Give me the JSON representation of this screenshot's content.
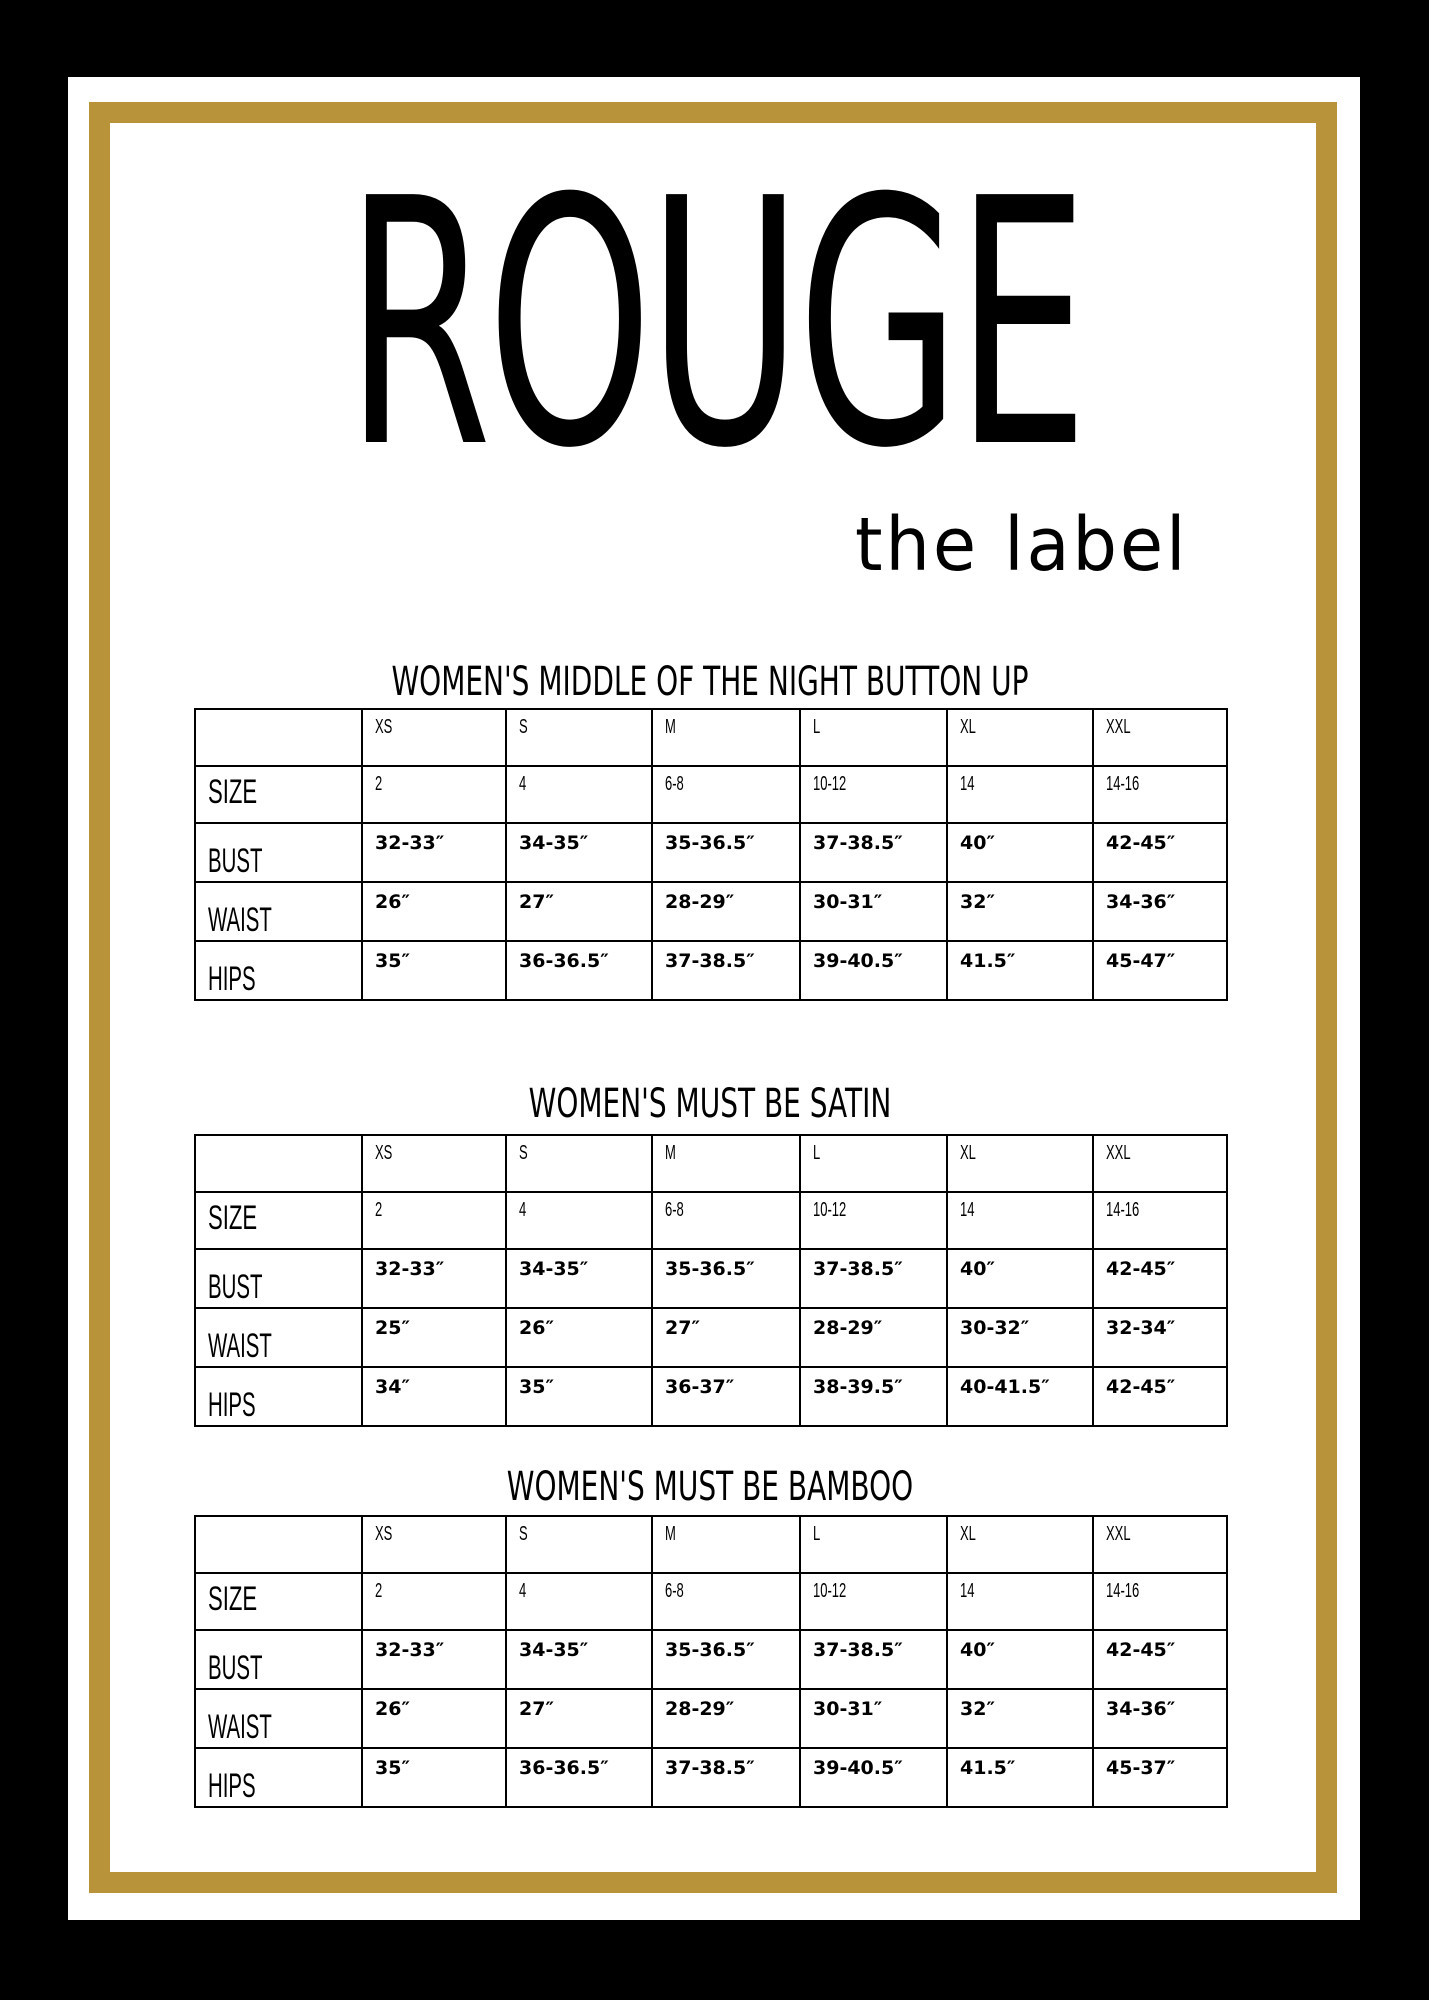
{
  "brand": {
    "name": "ROUGE",
    "tagline": "the label",
    "accent_color": "#b8933a"
  },
  "charts": [
    {
      "title": "WOMEN'S MIDDLE OF THE NIGHT BUTTON UP",
      "columns": [
        "XS",
        "S",
        "M",
        "L",
        "XL",
        "XXL"
      ],
      "rows": [
        {
          "label": "SIZE",
          "values": [
            "2",
            "4",
            "6-8",
            "10-12",
            "14",
            "14-16"
          ]
        },
        {
          "label": "BUST",
          "values": [
            "32-33″",
            "34-35″",
            "35-36.5″",
            "37-38.5″",
            "40″",
            "42-45″"
          ]
        },
        {
          "label": "WAIST",
          "values": [
            "26″",
            "27″",
            "28-29″",
            "30-31″",
            "32″",
            "34-36″"
          ]
        },
        {
          "label": "HIPS",
          "values": [
            "35″",
            "36-36.5″",
            "37-38.5″",
            "39-40.5″",
            "41.5″",
            "45-47″"
          ]
        }
      ]
    },
    {
      "title": "WOMEN'S MUST BE SATIN",
      "columns": [
        "XS",
        "S",
        "M",
        "L",
        "XL",
        "XXL"
      ],
      "rows": [
        {
          "label": "SIZE",
          "values": [
            "2",
            "4",
            "6-8",
            "10-12",
            "14",
            "14-16"
          ]
        },
        {
          "label": "BUST",
          "values": [
            "32-33″",
            "34-35″",
            "35-36.5″",
            "37-38.5″",
            "40″",
            "42-45″"
          ]
        },
        {
          "label": "WAIST",
          "values": [
            "25″",
            "26″",
            "27″",
            "28-29″",
            "30-32″",
            "32-34″"
          ]
        },
        {
          "label": "HIPS",
          "values": [
            "34″",
            "35″",
            "36-37″",
            "38-39.5″",
            "40-41.5″",
            "42-45″"
          ]
        }
      ]
    },
    {
      "title": "WOMEN'S MUST BE BAMBOO",
      "columns": [
        "XS",
        "S",
        "M",
        "L",
        "XL",
        "XXL"
      ],
      "rows": [
        {
          "label": "SIZE",
          "values": [
            "2",
            "4",
            "6-8",
            "10-12",
            "14",
            "14-16"
          ]
        },
        {
          "label": "BUST",
          "values": [
            "32-33″",
            "34-35″",
            "35-36.5″",
            "37-38.5″",
            "40″",
            "42-45″"
          ]
        },
        {
          "label": "WAIST",
          "values": [
            "26″",
            "27″",
            "28-29″",
            "30-31″",
            "32″",
            "34-36″"
          ]
        },
        {
          "label": "HIPS",
          "values": [
            "35″",
            "36-36.5″",
            "37-38.5″",
            "39-40.5″",
            "41.5″",
            "45-37″"
          ]
        }
      ]
    }
  ]
}
